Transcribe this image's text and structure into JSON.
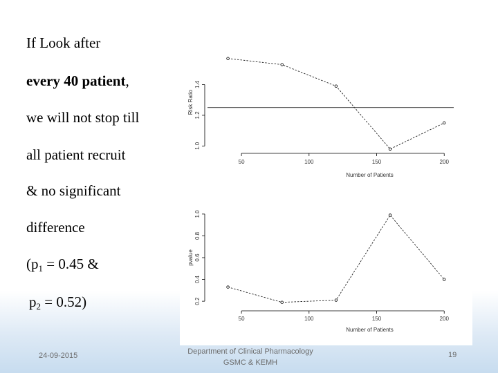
{
  "slide": {
    "bullets": {
      "line1": "If  Look  after",
      "line2_bold": "every 40 patient",
      "line2_tail": ",",
      "line3": "we will not stop till",
      "line4": "all patient recruit",
      "line5": "&  no significant",
      "line6": "difference",
      "p1_prefix": "(p",
      "p1_sub": "1",
      "p1_suffix": " = 0.45 &",
      "p2_prefix": "p",
      "p2_sub": "2",
      "p2_suffix": " = 0.52)"
    },
    "footer": {
      "date": "24-09-2015",
      "department": "Department of Clinical Pharmacology",
      "institution": "GSMC & KEMH",
      "page": "19"
    }
  },
  "chart_data": [
    {
      "type": "line",
      "xlabel": "Number of Patients",
      "ylabel": "Risk Ratio",
      "xticks": [
        50,
        100,
        150,
        200
      ],
      "xtick_labels": [
        "50",
        "100",
        "150",
        "200"
      ],
      "yticks": [
        1.0,
        1.2,
        1.4
      ],
      "ytick_labels": [
        "1.0",
        "1.2",
        "1.4"
      ],
      "x": [
        40,
        80,
        120,
        160,
        200
      ],
      "y": [
        1.57,
        1.53,
        1.39,
        0.98,
        1.15
      ],
      "reference_line": 1.25,
      "xlim": [
        30,
        205
      ],
      "ylim": [
        0.97,
        1.6
      ]
    },
    {
      "type": "line",
      "xlabel": "Number of Patients",
      "ylabel": "pvalue",
      "xticks": [
        50,
        100,
        150,
        200
      ],
      "xtick_labels": [
        "50",
        "100",
        "150",
        "200"
      ],
      "yticks": [
        0.2,
        0.4,
        0.6,
        0.8,
        1.0
      ],
      "ytick_labels": [
        "0.2",
        "0.4",
        "0.6",
        "0.8",
        "1.0"
      ],
      "x": [
        40,
        80,
        120,
        160,
        200
      ],
      "y": [
        0.33,
        0.19,
        0.21,
        0.99,
        0.4
      ],
      "xlim": [
        30,
        205
      ],
      "ylim": [
        0.15,
        1.05
      ]
    }
  ]
}
